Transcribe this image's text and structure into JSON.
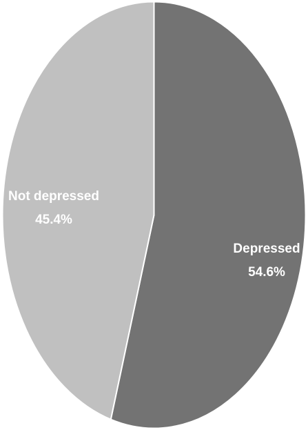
{
  "chart_data": {
    "type": "pie",
    "title": "",
    "slices": [
      {
        "label": "Depressed",
        "value": 54.6,
        "value_label": "54.6%",
        "color": "#737373"
      },
      {
        "label": "Not depressed",
        "value": 45.4,
        "value_label": "45.4%",
        "color": "#c0c0c0"
      }
    ],
    "legend": "none",
    "data_labels": "inside"
  }
}
